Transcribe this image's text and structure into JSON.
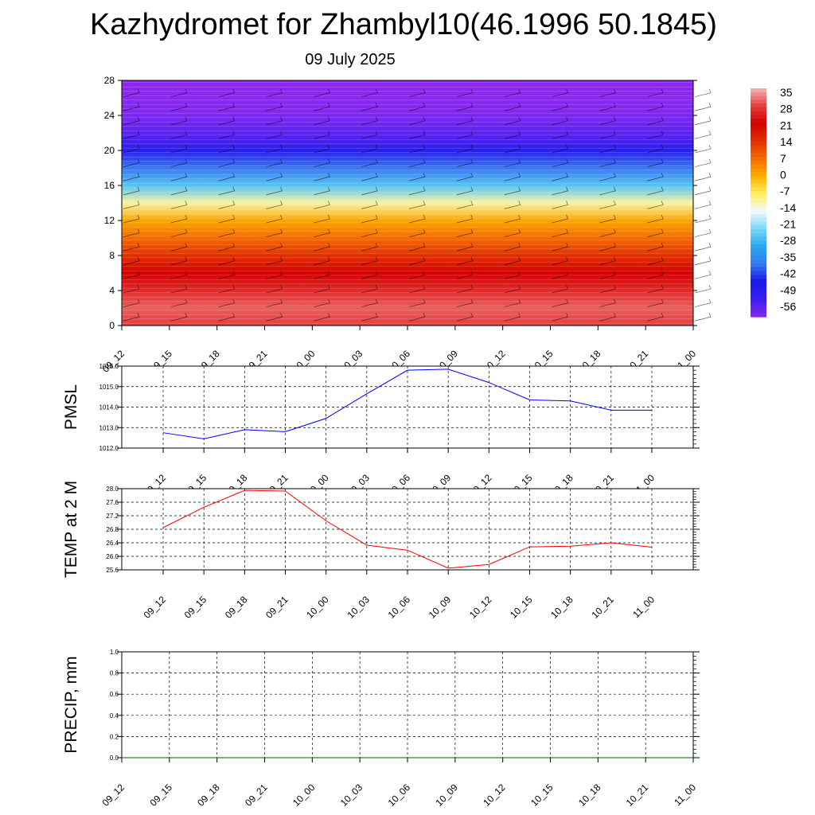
{
  "title": "Kazhydromet for Zhambyl10(46.1996 50.1845)",
  "subtitle": "09 July 2025",
  "x_labels": [
    "09_12",
    "09_15",
    "09_18",
    "09_21",
    "10_00",
    "10_03",
    "10_06",
    "10_09",
    "10_12",
    "10_15",
    "10_18",
    "10_21",
    "11_00"
  ],
  "colorbar": {
    "labels": [
      "35",
      "28",
      "21",
      "14",
      "7",
      "0",
      "-7",
      "-14",
      "-21",
      "-28",
      "-35",
      "-42",
      "-49",
      "-56"
    ],
    "colors": [
      "#f2b8b8",
      "#e63c3c",
      "#d40000",
      "#e23000",
      "#f56a00",
      "#fbb000",
      "#fff060",
      "#f0f8ff",
      "#78d8f8",
      "#28a8f0",
      "#3878f0",
      "#1818e8",
      "#3820f0",
      "#8a28f0"
    ]
  },
  "chart_data": [
    {
      "type": "heatmap",
      "title": "",
      "xlabel": "",
      "ylabel": "",
      "x": [
        "09_12",
        "09_15",
        "09_18",
        "09_21",
        "10_00",
        "10_03",
        "10_06",
        "10_09",
        "10_12",
        "10_15",
        "10_18",
        "10_21",
        "11_00"
      ],
      "ylim": [
        0,
        28
      ],
      "yticks": [
        "0",
        "4",
        "8",
        "12",
        "16",
        "20",
        "24",
        "28"
      ],
      "zlim": [
        -56,
        35
      ],
      "y_levels": [
        0,
        2,
        4,
        6,
        8,
        10,
        12,
        14,
        16,
        18,
        20,
        22,
        24,
        26,
        28
      ],
      "values_by_level": [
        28,
        30,
        26,
        21,
        14,
        7,
        1,
        -10,
        -24,
        -35,
        -46,
        -52,
        -55,
        -57,
        -58
      ]
    },
    {
      "type": "line",
      "title": "",
      "xlabel": "",
      "ylabel": "PMSL",
      "ylim": [
        1012.0,
        1016.0
      ],
      "yticks": [
        "1012.0",
        "1013.0",
        "1014.0",
        "1015.0",
        "1016.0"
      ],
      "x": [
        "09_12",
        "09_15",
        "09_18",
        "09_21",
        "10_00",
        "10_03",
        "10_06",
        "10_09",
        "10_12",
        "10_15",
        "10_18",
        "10_21",
        "11_00"
      ],
      "series": [
        {
          "name": "",
          "color": "#0000ff",
          "values": [
            1012.75,
            1012.45,
            1012.9,
            1012.8,
            1013.45,
            1014.65,
            1015.8,
            1015.85,
            1015.2,
            1014.35,
            1014.3,
            1013.85,
            1013.85
          ]
        }
      ]
    },
    {
      "type": "line",
      "title": "",
      "xlabel": "",
      "ylabel": "TEMP at 2 M",
      "ylim": [
        25.6,
        28.0
      ],
      "yticks": [
        "25.6",
        "26.0",
        "26.4",
        "26.8",
        "27.2",
        "27.6",
        "28.0"
      ],
      "x": [
        "09_12",
        "09_15",
        "09_18",
        "09_21",
        "10_00",
        "10_03",
        "10_06",
        "10_09",
        "10_12",
        "10_15",
        "10_18",
        "10_21",
        "11_00"
      ],
      "series": [
        {
          "name": "",
          "color": "#ff0000",
          "values": [
            26.85,
            27.45,
            27.95,
            27.93,
            27.05,
            26.33,
            26.18,
            25.65,
            25.76,
            26.28,
            26.3,
            26.4,
            26.27
          ]
        }
      ]
    },
    {
      "type": "line",
      "title": "",
      "xlabel": "",
      "ylabel": "PRECIP, mm",
      "ylim": [
        0.0,
        1.0
      ],
      "yticks": [
        "0.0",
        "0.2",
        "0.4",
        "0.6",
        "0.8",
        "1.0"
      ],
      "x": [
        "09_12",
        "09_15",
        "09_18",
        "09_21",
        "10_00",
        "10_03",
        "10_06",
        "10_09",
        "10_12",
        "10_15",
        "10_18",
        "10_21",
        "11_00"
      ],
      "series": [
        {
          "name": "",
          "color": "#006400",
          "values": [
            0,
            0,
            0,
            0,
            0,
            0,
            0,
            0,
            0,
            0,
            0,
            0,
            0
          ]
        }
      ]
    }
  ]
}
